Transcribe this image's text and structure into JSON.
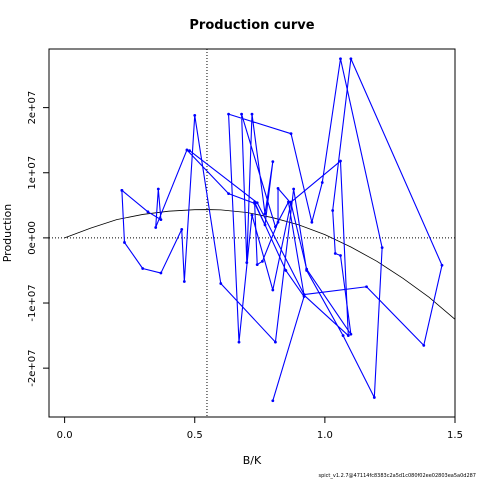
{
  "chart_data": {
    "type": "line",
    "title": "Production curve",
    "xlabel": "B/K",
    "ylabel": "Production",
    "xlim": [
      -0.06,
      1.5
    ],
    "ylim": [
      -27500000,
      29000000
    ],
    "x_ticks": [
      {
        "value": 0.0,
        "label": "0.0"
      },
      {
        "value": 0.5,
        "label": "0.5"
      },
      {
        "value": 1.0,
        "label": "1.0"
      },
      {
        "value": 1.5,
        "label": "1.5"
      }
    ],
    "y_ticks": [
      {
        "value": -20000000,
        "label": "-2e+07"
      },
      {
        "value": -10000000,
        "label": "-1e+07"
      },
      {
        "value": 0,
        "label": "0e+00"
      },
      {
        "value": 10000000,
        "label": "1e+07"
      },
      {
        "value": 20000000,
        "label": "2e+07"
      }
    ],
    "reference_lines": {
      "vertical_x": 0.547,
      "horizontal_y": 0
    },
    "curve": {
      "color": "#000000",
      "x": [
        0.0,
        0.1,
        0.2,
        0.3,
        0.4,
        0.5,
        0.55,
        0.6,
        0.7,
        0.8,
        0.9,
        1.0,
        1.1,
        1.2,
        1.3,
        1.4,
        1.5
      ],
      "y": [
        0,
        1500000,
        2800000,
        3600000,
        4100000,
        4330000,
        4350000,
        4300000,
        3900000,
        3100000,
        2000000,
        500000,
        -1400000,
        -3600000,
        -6200000,
        -9100000,
        -12500000
      ]
    },
    "series": [
      {
        "color": "#0000ff",
        "x": [
          0.22,
          0.32,
          0.37,
          0.36,
          0.35,
          0.47,
          0.63,
          0.73,
          0.77,
          0.8,
          0.77,
          0.72,
          0.7,
          0.68,
          0.81,
          0.86,
          0.92,
          1.09,
          1.06,
          0.87,
          0.8,
          0.72,
          0.67,
          0.63,
          0.87,
          0.95,
          0.99,
          1.06,
          1.22,
          1.19,
          1.07,
          0.93,
          0.88,
          0.81,
          0.6,
          0.5,
          0.46,
          0.45,
          0.37,
          0.3,
          0.23,
          0.22
        ],
        "y": [
          7300000,
          4000000,
          2800000,
          7500000,
          1600000,
          13500000,
          6800000,
          5300000,
          2000000,
          11700000,
          3700000,
          19000000,
          -3800000,
          19000000,
          1700000,
          5500000,
          -8800000,
          -15000000,
          11800000,
          5500000,
          -8000000,
          3500000,
          -16000000,
          19000000,
          16000000,
          2400000,
          8500000,
          27500000,
          -1500000,
          -24500000,
          -15000000,
          -5000000,
          7500000,
          -16000000,
          -7000000,
          18800000,
          -6700000,
          1300000,
          -5400000,
          -4700000,
          -700000,
          7300000
        ]
      },
      {
        "color": "#0000ff",
        "x": [
          0.48,
          0.74,
          0.92,
          1.16,
          1.38,
          1.45,
          1.1,
          1.03,
          1.04,
          1.06,
          1.1,
          0.93,
          0.87,
          0.82,
          0.82,
          0.76,
          0.74,
          0.73,
          0.85,
          0.92,
          0.8
        ],
        "y": [
          13400000,
          5400000,
          -8700000,
          -7500000,
          -16500000,
          -4200000,
          27500000,
          4200000,
          -2400000,
          -2700000,
          -14800000,
          -4800000,
          5300000,
          7600000,
          2400000,
          -3600000,
          -4100000,
          5500000,
          -5000000,
          -9000000,
          -25000000
        ]
      }
    ],
    "footer": "spict_v1.2.7@47114fc8383c2a5d1c080f02ee02803ea5a0d287"
  }
}
